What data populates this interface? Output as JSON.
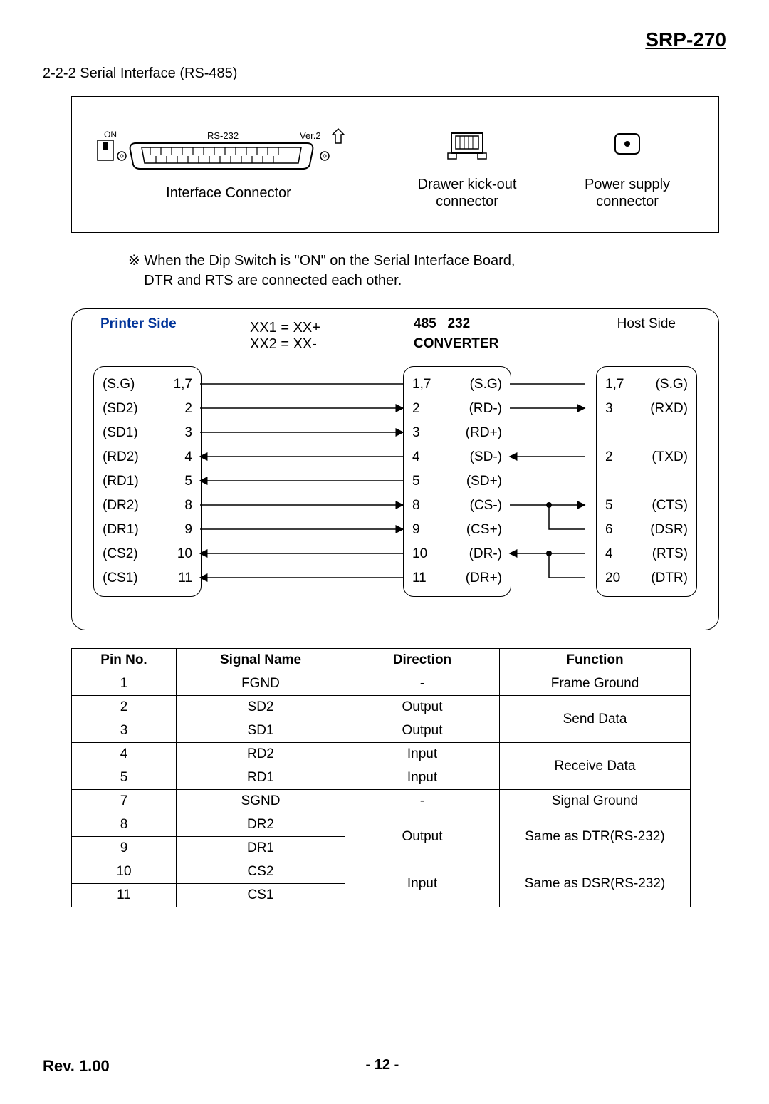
{
  "header": {
    "model": "SRP-270"
  },
  "section": {
    "title": "2-2-2 Serial Interface (RS-485)"
  },
  "connectors": {
    "interface": {
      "on": "ON",
      "label_rs232": "RS-232",
      "label_ver": "Ver.2",
      "caption": "Interface Connector"
    },
    "drawer": {
      "caption1": "Drawer kick-out",
      "caption2": "connector"
    },
    "power": {
      "caption1": "Power supply",
      "caption2": "connector"
    }
  },
  "note": {
    "line1": "※ When the Dip Switch is \"ON\" on the Serial Interface Board,",
    "line2": "DTR and RTS are connected each other."
  },
  "wiring": {
    "printer_label": "Printer Side",
    "conv_485": "485",
    "conv_232": "232",
    "conv_title": "CONVERTER",
    "host_label": "Host Side",
    "xx1": "XX1 = XX+",
    "xx2": "XX2 = XX-",
    "printer_rows": [
      {
        "name": "(S.G)",
        "pin": "1,7"
      },
      {
        "name": "(SD2)",
        "pin": "2"
      },
      {
        "name": "(SD1)",
        "pin": "3"
      },
      {
        "name": "(RD2)",
        "pin": "4"
      },
      {
        "name": "(RD1)",
        "pin": "5"
      },
      {
        "name": "(DR2)",
        "pin": "8"
      },
      {
        "name": "(DR1)",
        "pin": "9"
      },
      {
        "name": "(CS2)",
        "pin": "10"
      },
      {
        "name": "(CS1)",
        "pin": "11"
      }
    ],
    "conv_rows": [
      {
        "pin": "1,7",
        "name": "(S.G)"
      },
      {
        "pin": "2",
        "name": "(RD-)"
      },
      {
        "pin": "3",
        "name": "(RD+)"
      },
      {
        "pin": "4",
        "name": "(SD-)"
      },
      {
        "pin": "5",
        "name": "(SD+)"
      },
      {
        "pin": "8",
        "name": "(CS-)"
      },
      {
        "pin": "9",
        "name": "(CS+)"
      },
      {
        "pin": "10",
        "name": "(DR-)"
      },
      {
        "pin": "11",
        "name": "(DR+)"
      }
    ],
    "host_rows": [
      {
        "pin": "1,7",
        "name": "(S.G)"
      },
      {
        "pin": "3",
        "name": "(RXD)"
      },
      {
        "pin": "2",
        "name": "(TXD)"
      },
      {
        "pin": "5",
        "name": "(CTS)"
      },
      {
        "pin": "6",
        "name": "(DSR)"
      },
      {
        "pin": "4",
        "name": "(RTS)"
      },
      {
        "pin": "20",
        "name": "(DTR)"
      }
    ]
  },
  "table": {
    "headers": [
      "Pin No.",
      "Signal Name",
      "Direction",
      "Function"
    ],
    "rows": [
      {
        "pin": "1",
        "sig": "FGND",
        "dir": "-",
        "func": "Frame Ground"
      },
      {
        "pin": "2",
        "sig": "SD2",
        "dir": "Output"
      },
      {
        "pin": "3",
        "sig": "SD1",
        "dir": "Output"
      },
      {
        "pin": "4",
        "sig": "RD2",
        "dir": "Input"
      },
      {
        "pin": "5",
        "sig": "RD1",
        "dir": "Input"
      },
      {
        "pin": "7",
        "sig": "SGND",
        "dir": "-",
        "func": "Signal Ground"
      },
      {
        "pin": "8",
        "sig": "DR2"
      },
      {
        "pin": "9",
        "sig": "DR1"
      },
      {
        "pin": "10",
        "sig": "CS2"
      },
      {
        "pin": "11",
        "sig": "CS1"
      }
    ],
    "func_send": "Send Data",
    "func_recv": "Receive Data",
    "func_dtr": "Same as DTR(RS-232)",
    "func_dsr": "Same as DSR(RS-232)",
    "dir_out": "Output",
    "dir_in": "Input"
  },
  "footer": {
    "rev": "Rev. 1.00",
    "page": "- 12 -"
  },
  "colors": {
    "blue": "#003399"
  }
}
